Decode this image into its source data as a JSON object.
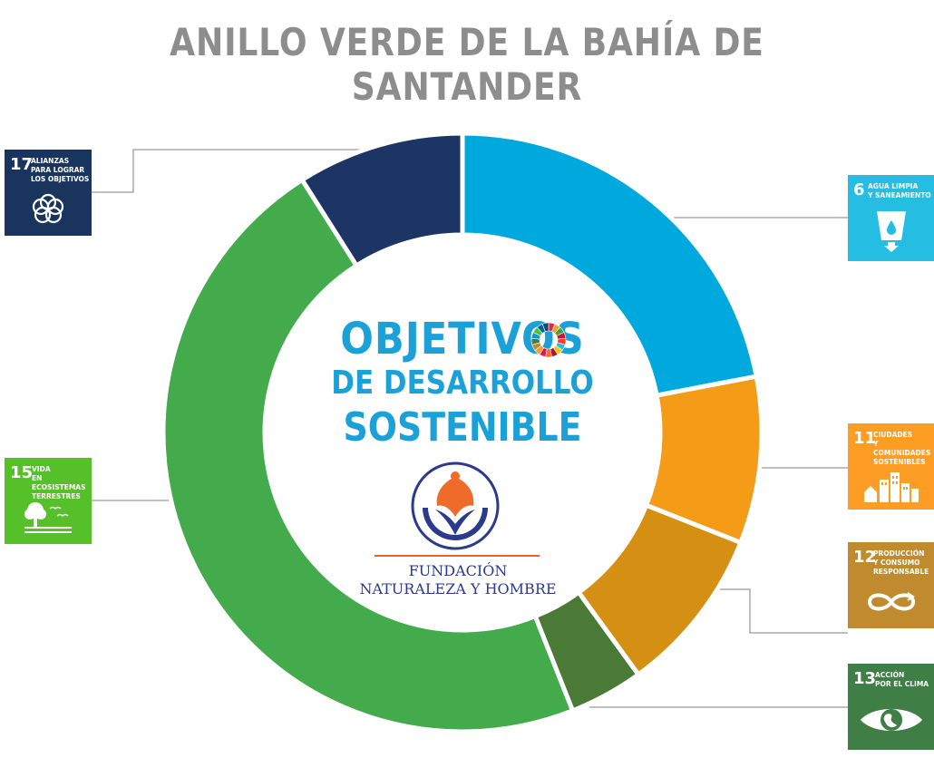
{
  "title": "ANILLO VERDE DE LA BAHÍA DE SANTANDER",
  "center": {
    "line1": "OBJETIVOS",
    "line2": "DE DESARROLLO",
    "line3": "SOSTENIBLE"
  },
  "organization": {
    "name_line1": "FUNDACIÓN",
    "name_line2": "NATURALEZA Y HOMBRE"
  },
  "goals": [
    {
      "number": "17",
      "label": "ALIANZAS\nPARA LOGRAR\nLOS OBJETIVOS",
      "color": "#19355e",
      "icon": "interlocking-rings-icon"
    },
    {
      "number": "6",
      "label": "AGUA LIMPIA\nY SANEAMIENTO",
      "color": "#26bde2",
      "icon": "water-glass-icon"
    },
    {
      "number": "11",
      "label": "CIUDADES\nY COMUNIDADES\nSOSTENIBLES",
      "color": "#fd9d24",
      "icon": "city-buildings-icon"
    },
    {
      "number": "12",
      "label": "PRODUCCIÓN\nY CONSUMO\nRESPONSABLE",
      "color": "#bf8b2e",
      "icon": "infinity-loop-icon"
    },
    {
      "number": "13",
      "label": "ACCIÓN\nPOR EL CLIMA",
      "color": "#3f7e44",
      "icon": "earth-eye-icon"
    },
    {
      "number": "15",
      "label": "VIDA\nEN ECOSISTEMAS\nTERRESTRES",
      "color": "#56c02b",
      "icon": "tree-birds-icon"
    }
  ],
  "chart_data": {
    "type": "pie",
    "donut": true,
    "categories": [
      "6",
      "11",
      "12",
      "13",
      "15",
      "17"
    ],
    "values": [
      22,
      9,
      9,
      4,
      47,
      9
    ],
    "colors": [
      "#00a9dd",
      "#f49b18",
      "#d58f12",
      "#4a7a35",
      "#43ab4c",
      "#1d3565"
    ]
  }
}
